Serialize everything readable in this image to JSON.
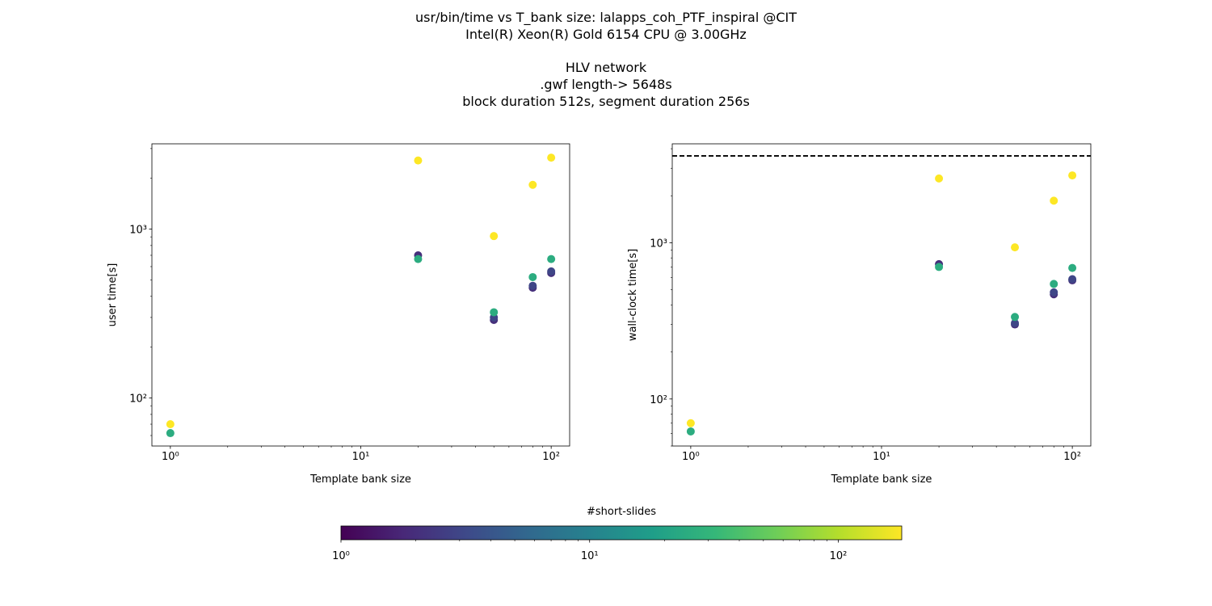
{
  "title_lines": [
    "usr/bin/time vs T_bank size: lalapps_coh_PTF_inspiral @CIT",
    "Intel(R) Xeon(R) Gold 6154 CPU @ 3.00GHz",
    "",
    "HLV network",
    ".gwf length-> 5648s",
    "block duration 512s, segment duration 256s"
  ],
  "chart_data": [
    {
      "type": "scatter",
      "title": "",
      "xlabel": "Template bank size",
      "ylabel": "user time[s]",
      "xscale": "log",
      "yscale": "log",
      "xlim": [
        0.8,
        125
      ],
      "ylim": [
        52,
        3200
      ],
      "xticks": [
        {
          "value": 1,
          "label": "10⁰"
        },
        {
          "value": 10,
          "label": "10¹"
        },
        {
          "value": 100,
          "label": "10²"
        }
      ],
      "yticks": [
        {
          "value": 100,
          "label": "10²"
        },
        {
          "value": 1000,
          "label": "10³"
        }
      ],
      "color_by": "#short-slides",
      "points": [
        {
          "x": 1,
          "y": 62,
          "c": 25
        },
        {
          "x": 1,
          "y": 70,
          "c": 180
        },
        {
          "x": 20,
          "y": 700,
          "c": 2
        },
        {
          "x": 20,
          "y": 665,
          "c": 25
        },
        {
          "x": 20,
          "y": 2550,
          "c": 180
        },
        {
          "x": 50,
          "y": 290,
          "c": 2
        },
        {
          "x": 50,
          "y": 300,
          "c": 3
        },
        {
          "x": 50,
          "y": 322,
          "c": 25
        },
        {
          "x": 50,
          "y": 910,
          "c": 180
        },
        {
          "x": 80,
          "y": 450,
          "c": 2
        },
        {
          "x": 80,
          "y": 462,
          "c": 3
        },
        {
          "x": 80,
          "y": 520,
          "c": 25
        },
        {
          "x": 80,
          "y": 1830,
          "c": 180
        },
        {
          "x": 100,
          "y": 550,
          "c": 2
        },
        {
          "x": 100,
          "y": 562,
          "c": 3
        },
        {
          "x": 100,
          "y": 665,
          "c": 25
        },
        {
          "x": 100,
          "y": 2650,
          "c": 180
        }
      ]
    },
    {
      "type": "scatter",
      "title": "",
      "xlabel": "Template bank size",
      "ylabel": "wall-clock time[s]",
      "xscale": "log",
      "yscale": "log",
      "xlim": [
        0.8,
        125
      ],
      "ylim": [
        50,
        4300
      ],
      "xticks": [
        {
          "value": 1,
          "label": "10⁰"
        },
        {
          "value": 10,
          "label": "10¹"
        },
        {
          "value": 100,
          "label": "10²"
        }
      ],
      "yticks": [
        {
          "value": 100,
          "label": "10²"
        },
        {
          "value": 1000,
          "label": "10³"
        }
      ],
      "color_by": "#short-slides",
      "hline": {
        "y": 3600,
        "style": "dashed",
        "color": "#000000"
      },
      "points": [
        {
          "x": 1,
          "y": 62,
          "c": 25
        },
        {
          "x": 1,
          "y": 70,
          "c": 180
        },
        {
          "x": 20,
          "y": 730,
          "c": 2
        },
        {
          "x": 20,
          "y": 700,
          "c": 25
        },
        {
          "x": 20,
          "y": 2580,
          "c": 180
        },
        {
          "x": 50,
          "y": 300,
          "c": 2
        },
        {
          "x": 50,
          "y": 306,
          "c": 3
        },
        {
          "x": 50,
          "y": 335,
          "c": 25
        },
        {
          "x": 50,
          "y": 935,
          "c": 180
        },
        {
          "x": 80,
          "y": 468,
          "c": 2
        },
        {
          "x": 80,
          "y": 482,
          "c": 3
        },
        {
          "x": 80,
          "y": 545,
          "c": 25
        },
        {
          "x": 80,
          "y": 1860,
          "c": 180
        },
        {
          "x": 100,
          "y": 575,
          "c": 2
        },
        {
          "x": 100,
          "y": 585,
          "c": 3
        },
        {
          "x": 100,
          "y": 690,
          "c": 25
        },
        {
          "x": 100,
          "y": 2700,
          "c": 180
        }
      ]
    }
  ],
  "colorbar": {
    "label": "#short-slides",
    "scale": "log",
    "range": [
      1,
      180
    ],
    "colormap": "viridis",
    "ticks": [
      {
        "value": 1,
        "label": "10⁰"
      },
      {
        "value": 10,
        "label": "10¹"
      },
      {
        "value": 100,
        "label": "10²"
      }
    ]
  },
  "viridis_stops": [
    "#440154",
    "#482878",
    "#3e4989",
    "#31688e",
    "#26828e",
    "#1f9e89",
    "#35b779",
    "#6ece58",
    "#b5de2b",
    "#fde725"
  ]
}
